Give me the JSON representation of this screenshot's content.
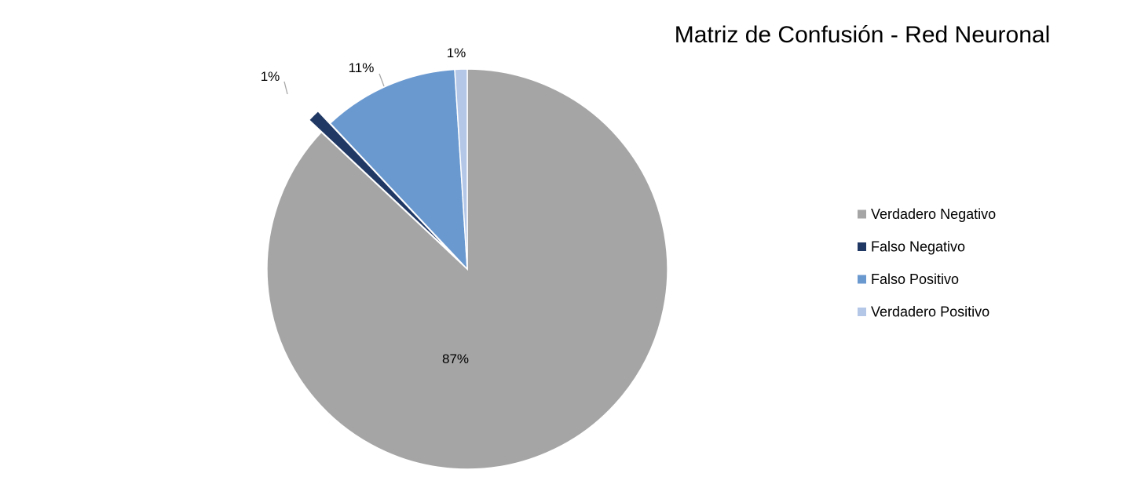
{
  "chart_data": {
    "type": "pie",
    "title": "Matriz de Confusión - Red Neuronal",
    "legend_position": "right",
    "start_angle": "12 o'clock, clockwise",
    "categories": [
      "Verdadero Negativo",
      "Falso Negativo",
      "Falso Positivo",
      "Verdadero Positivo"
    ],
    "values": [
      87,
      1,
      11,
      1
    ],
    "data_labels": [
      "87%",
      "1%",
      "11%",
      "1%"
    ],
    "exploded": [
      false,
      true,
      false,
      false
    ],
    "colors": [
      "#a5a5a5",
      "#203864",
      "#6a99d0",
      "#b4c7e7"
    ]
  }
}
